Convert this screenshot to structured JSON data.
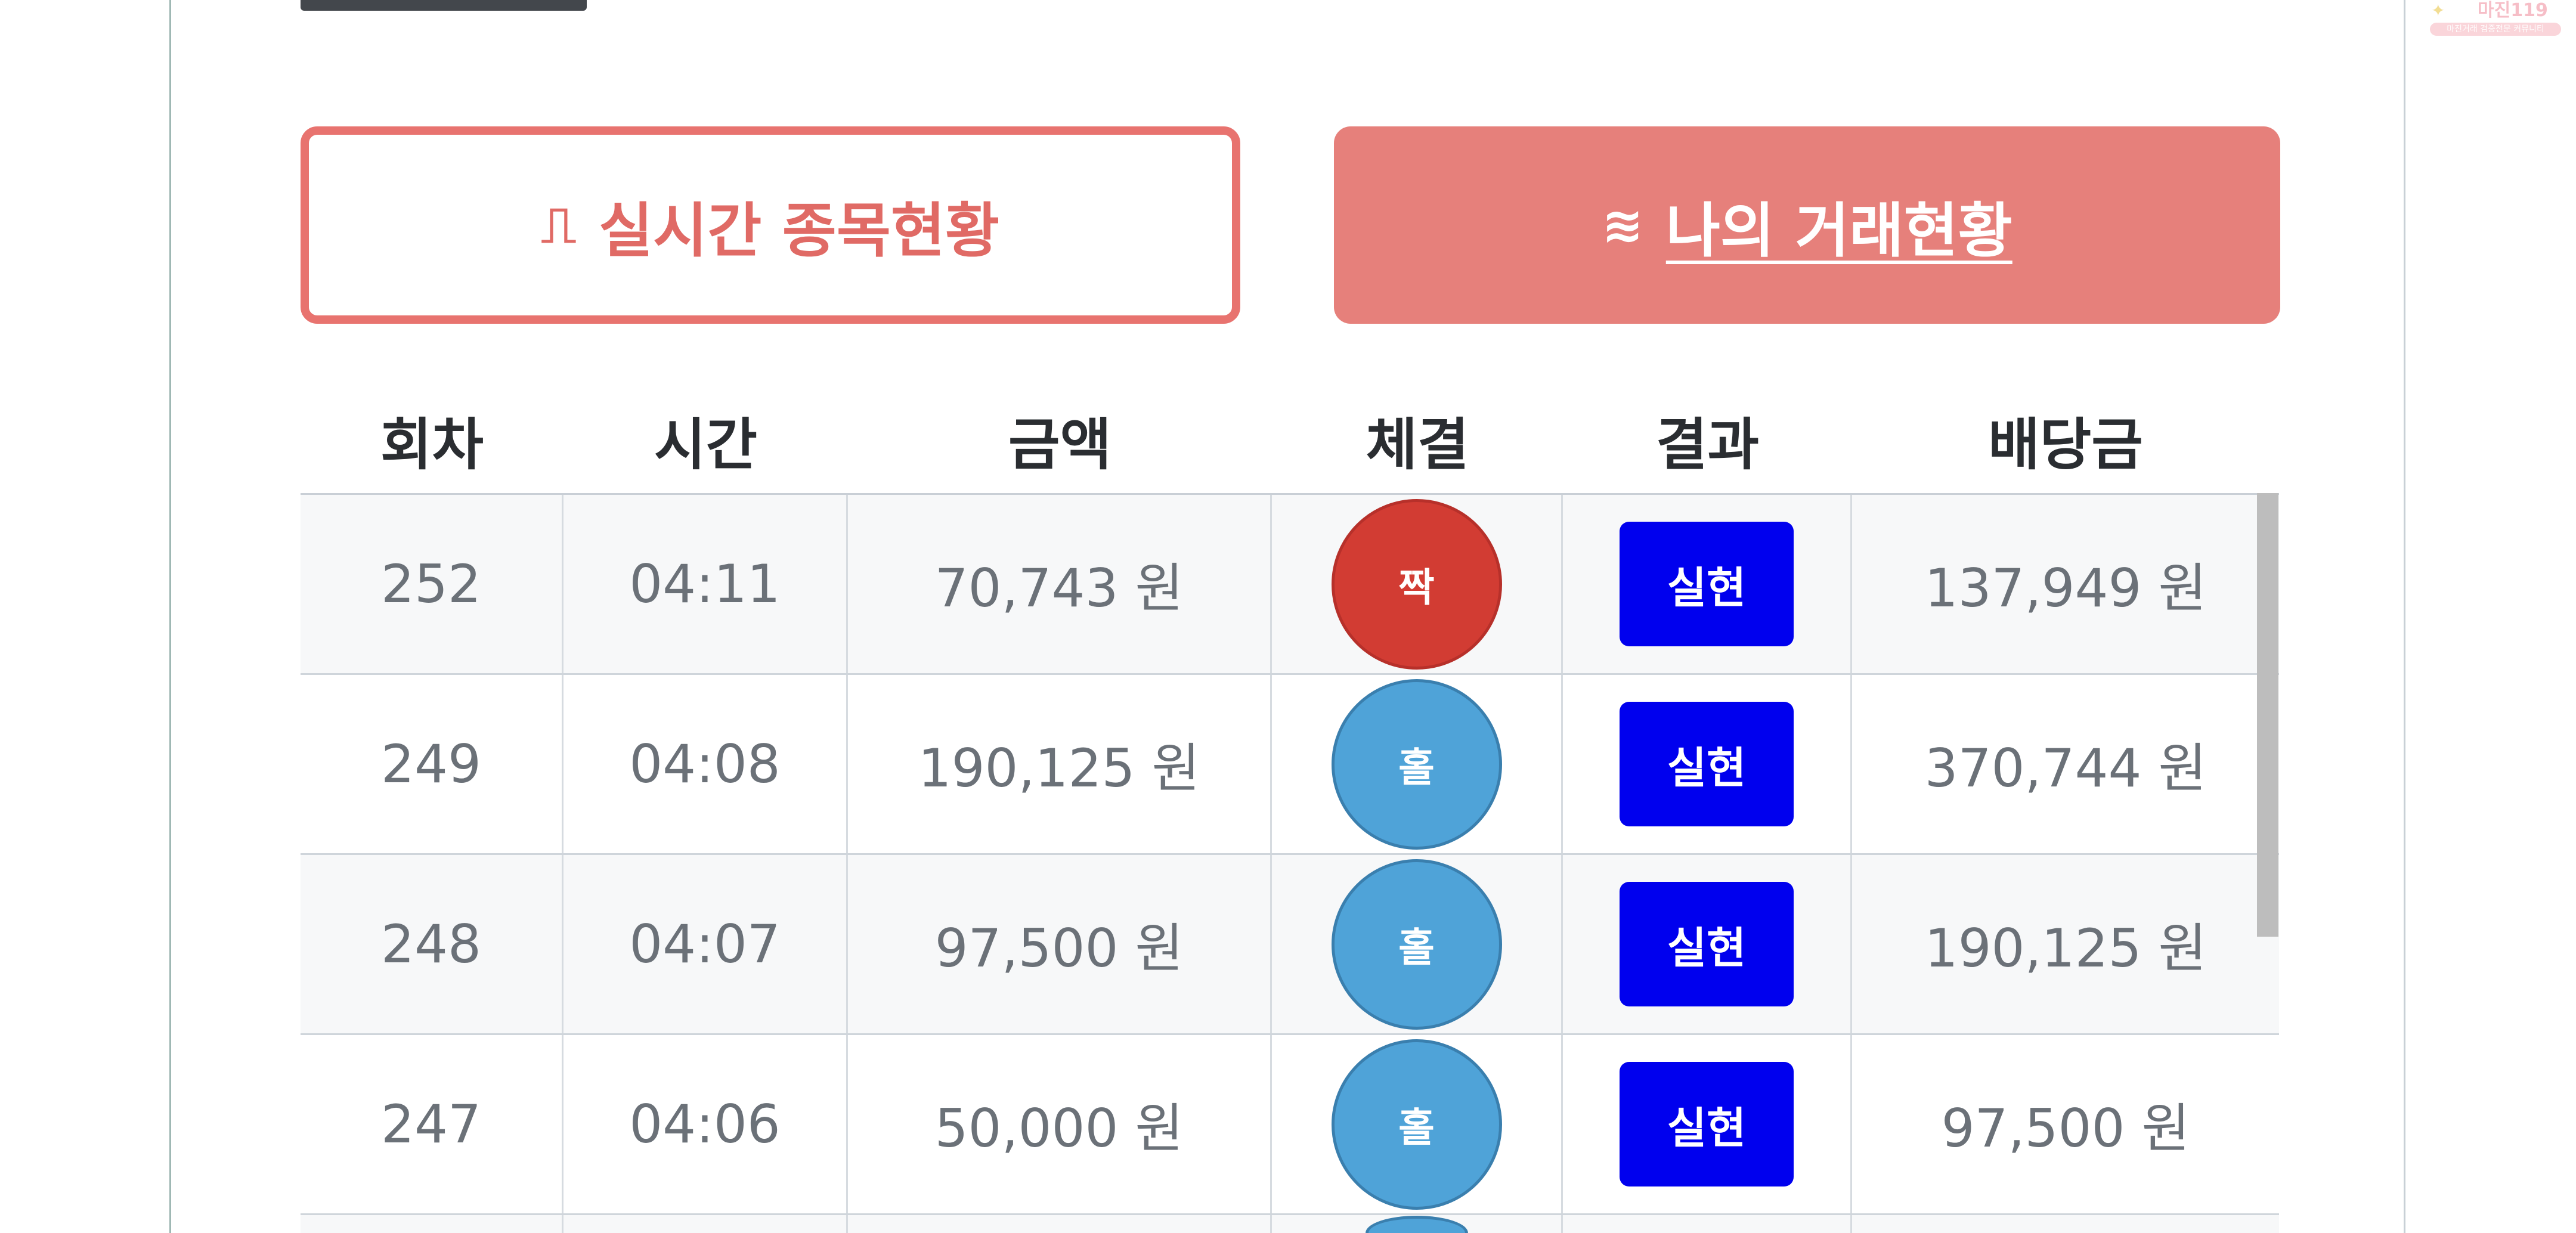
{
  "tabs": [
    {
      "label": "실시간 종목현황",
      "icon": "pulse-icon",
      "active": false
    },
    {
      "label": "나의 거래현황",
      "icon": "waves-icon",
      "active": true
    }
  ],
  "table": {
    "headers": [
      "회차",
      "시간",
      "금액",
      "체결",
      "결과",
      "배당금"
    ],
    "rows": [
      {
        "round": "252",
        "time": "04:11",
        "amount": "70,743 원",
        "pick": "짝",
        "pick_color": "red",
        "result": "실현",
        "payout": "137,949 원"
      },
      {
        "round": "249",
        "time": "04:08",
        "amount": "190,125 원",
        "pick": "홀",
        "pick_color": "blue",
        "result": "실현",
        "payout": "370,744 원"
      },
      {
        "round": "248",
        "time": "04:07",
        "amount": "97,500 원",
        "pick": "홀",
        "pick_color": "blue",
        "result": "실현",
        "payout": "190,125 원"
      },
      {
        "round": "247",
        "time": "04:06",
        "amount": "50,000 원",
        "pick": "홀",
        "pick_color": "blue",
        "result": "실현",
        "payout": "97,500 원"
      }
    ]
  },
  "watermark": {
    "brand": "마진119",
    "tagline": "마진거래 검증전문 커뮤니티"
  },
  "colors": {
    "accent": "#e6807b",
    "odd_ball": "#4fa3d8",
    "even_ball": "#d23c33",
    "result_badge": "#0000ee"
  }
}
